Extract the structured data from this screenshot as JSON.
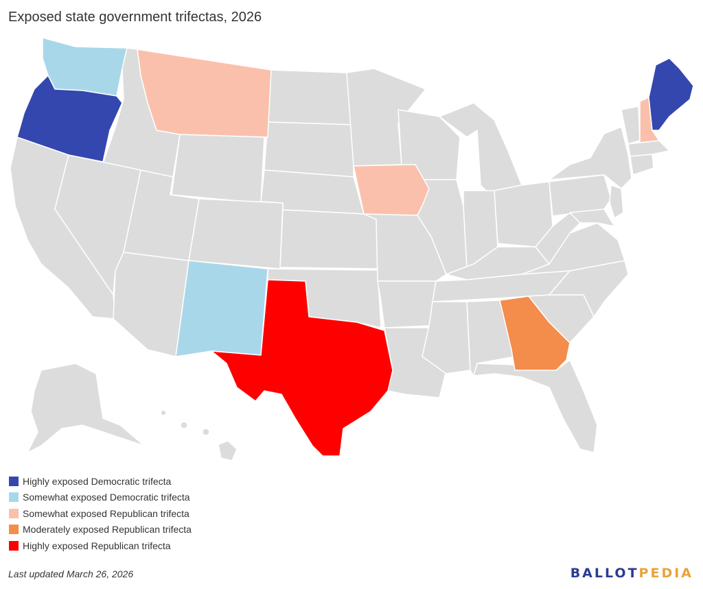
{
  "title": "Exposed state government trifectas, 2026",
  "colors": {
    "highly_dem": "#3447ae",
    "somewhat_dem": "#a9d7ea",
    "somewhat_rep": "#fbc0ab",
    "moderately_rep": "#f48c4c",
    "highly_rep": "#ff0000",
    "other": "#dcdcdc",
    "border": "#ffffff"
  },
  "legend": [
    {
      "label": "Highly exposed Democratic trifecta",
      "color": "#3447ae"
    },
    {
      "label": "Somewhat exposed Democratic trifecta",
      "color": "#a9d7ea"
    },
    {
      "label": "Somewhat exposed Republican trifecta",
      "color": "#fbc0ab"
    },
    {
      "label": "Moderately exposed Republican trifecta",
      "color": "#f48c4c"
    },
    {
      "label": "Highly exposed Republican trifecta",
      "color": "#ff0000"
    }
  ],
  "states": {
    "Oregon": "Highly exposed Democratic trifecta",
    "Maine": "Highly exposed Democratic trifecta",
    "Washington": "Somewhat exposed Democratic trifecta",
    "New Mexico": "Somewhat exposed Democratic trifecta",
    "Montana": "Somewhat exposed Republican trifecta",
    "Iowa": "Somewhat exposed Republican trifecta",
    "New Hampshire": "Somewhat exposed Republican trifecta",
    "Georgia": "Moderately exposed Republican trifecta",
    "Texas": "Highly exposed Republican trifecta"
  },
  "footer": "Last updated March 26, 2026",
  "logo": {
    "part1": "BALLOT",
    "part2": "PEDIA"
  }
}
